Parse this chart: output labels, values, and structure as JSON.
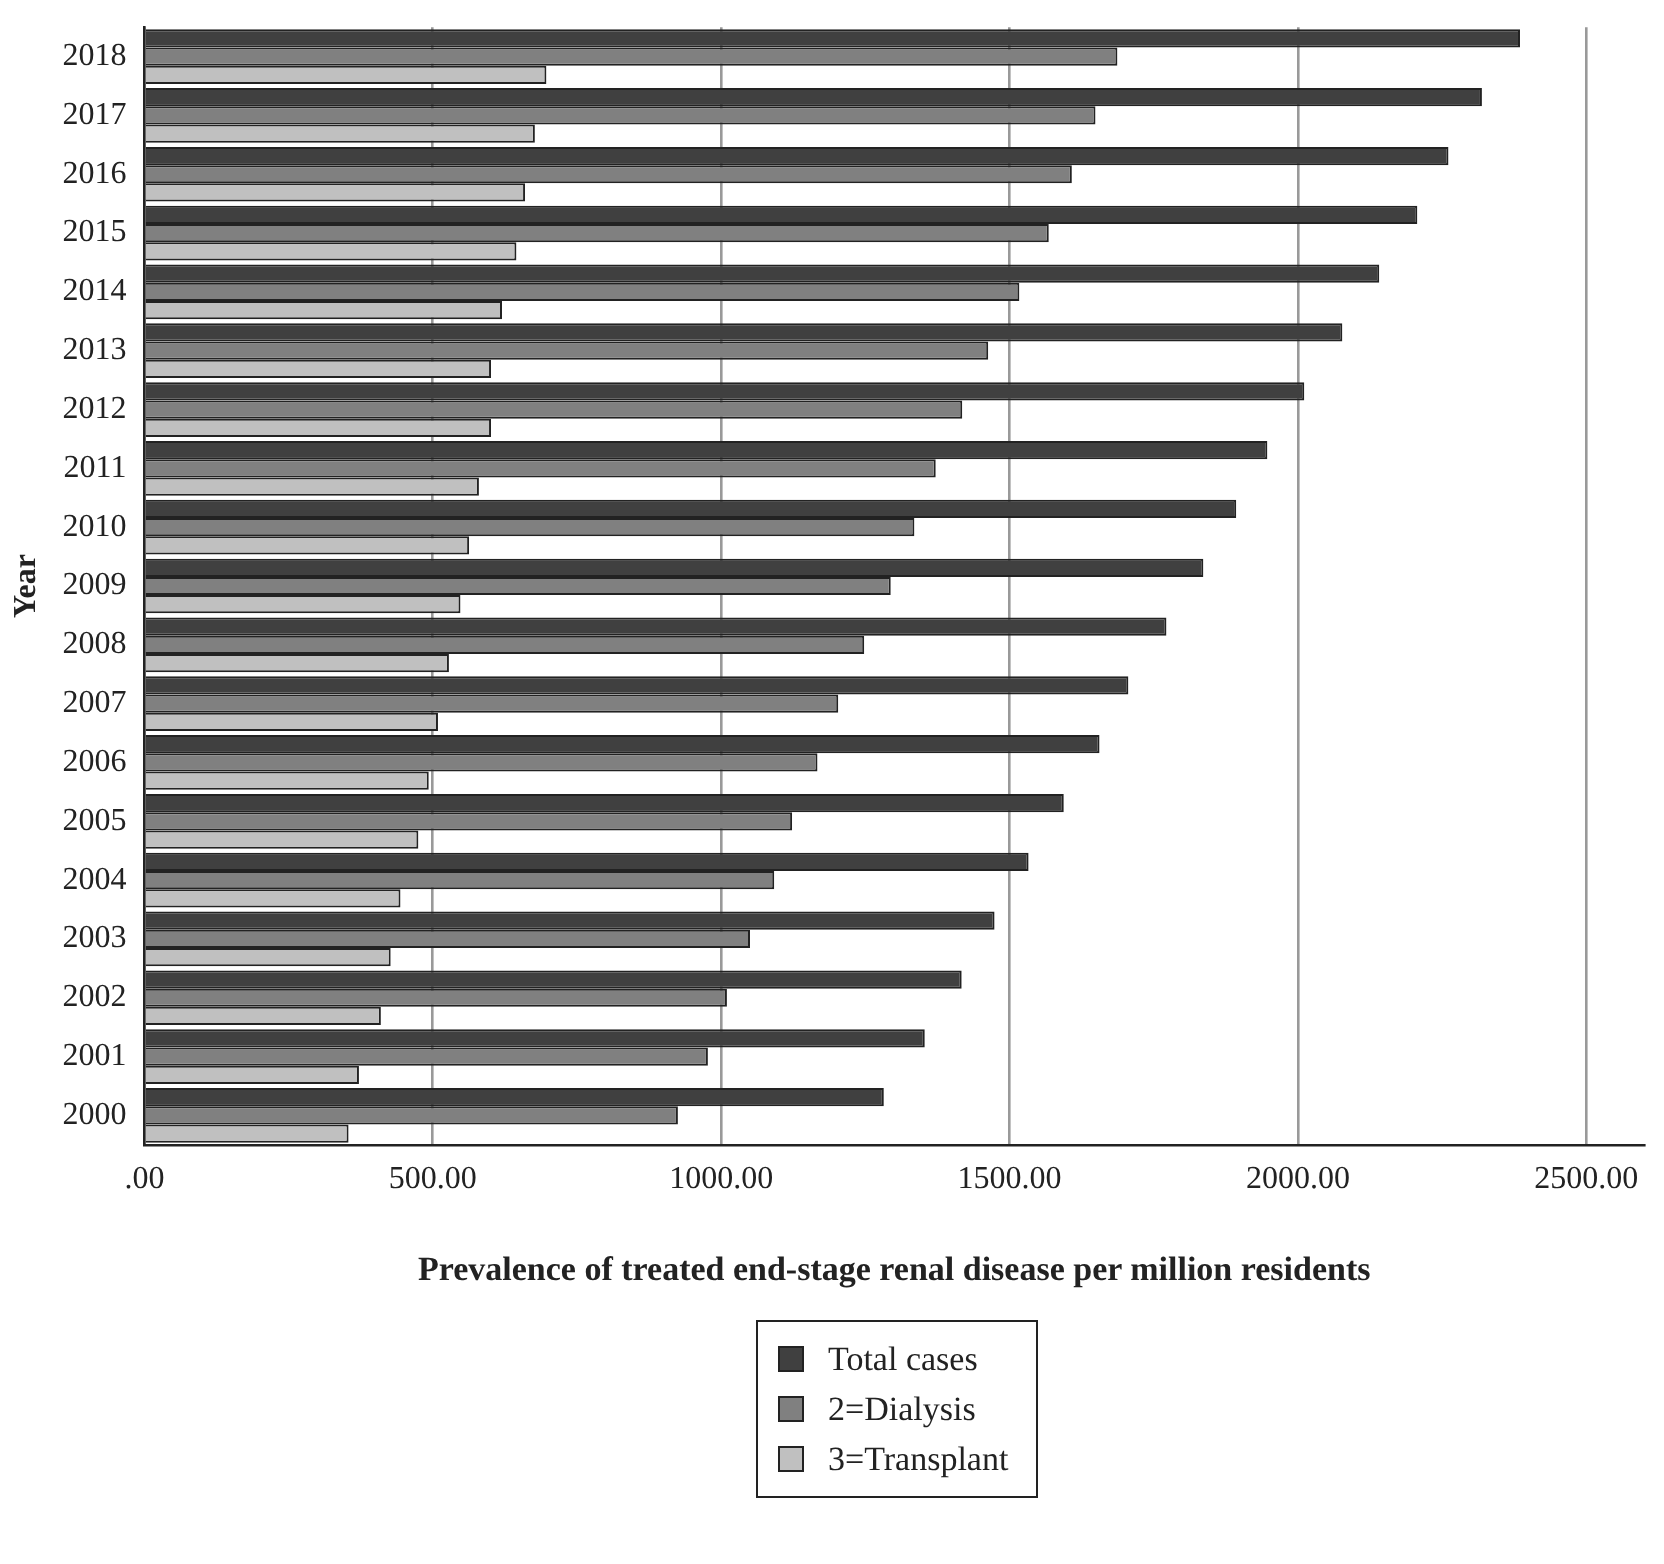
{
  "chart_data": {
    "type": "bar",
    "orientation": "horizontal",
    "xlabel": "Prevalence of treated end-stage renal disease per million residents",
    "ylabel": "Year",
    "categories": [
      "2018",
      "2017",
      "2016",
      "2015",
      "2014",
      "2013",
      "2012",
      "2011",
      "2010",
      "2009",
      "2008",
      "2007",
      "2006",
      "2005",
      "2004",
      "2003",
      "2002",
      "2001",
      "2000"
    ],
    "series": [
      {
        "name": "Total cases",
        "color": "#404040",
        "values": [
          2385,
          2319,
          2261,
          2207,
          2141,
          2077,
          2011,
          1947,
          1893,
          1836,
          1772,
          1706,
          1656,
          1594,
          1533,
          1474,
          1417,
          1353,
          1282
        ]
      },
      {
        "name": "2=Dialysis",
        "color": "#808080",
        "values": [
          1687,
          1649,
          1608,
          1568,
          1517,
          1463,
          1418,
          1372,
          1335,
          1294,
          1248,
          1203,
          1167,
          1123,
          1092,
          1050,
          1010,
          977,
          925
        ]
      },
      {
        "name": "3=Transplant",
        "color": "#c0c0c0",
        "values": [
          697,
          677,
          660,
          645,
          620,
          601,
          601,
          580,
          563,
          548,
          528,
          509,
          493,
          475,
          444,
          427,
          410,
          372,
          354
        ]
      }
    ],
    "xlim": [
      0,
      2600
    ],
    "xticks": [
      {
        "value": 0,
        "label": ".00"
      },
      {
        "value": 500,
        "label": "500.00"
      },
      {
        "value": 1000,
        "label": "1000.00"
      },
      {
        "value": 1500,
        "label": "1500.00"
      },
      {
        "value": 2000,
        "label": "2000.00"
      },
      {
        "value": 2500,
        "label": "2500.00"
      }
    ],
    "grid": "x",
    "legend": "bottom"
  }
}
